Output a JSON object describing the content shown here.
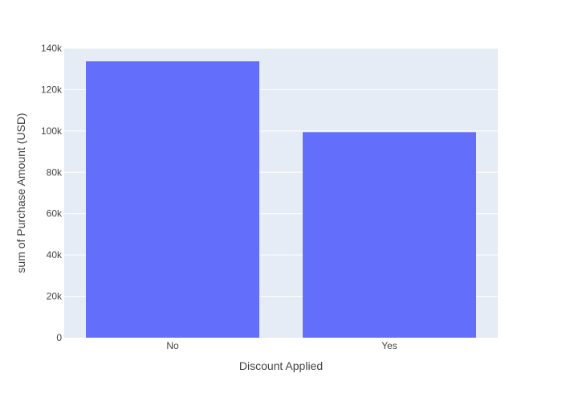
{
  "colors": {
    "plot_background": "#e5ecf6",
    "gridline": "#ffffff",
    "bar": "#636efa",
    "text": "#444444"
  },
  "chart_data": {
    "type": "bar",
    "categories": [
      "No",
      "Yes"
    ],
    "values": [
      133670,
      99411
    ],
    "title": "",
    "xlabel": "Discount Applied",
    "ylabel": "sum of Purchase Amount (USD)",
    "ylim": [
      0,
      140000
    ],
    "yticks": [
      0,
      20000,
      40000,
      60000,
      80000,
      100000,
      120000,
      140000
    ],
    "ytick_labels": [
      "0",
      "20k",
      "40k",
      "60k",
      "80k",
      "100k",
      "120k",
      "140k"
    ],
    "grid": true,
    "legend": "none"
  }
}
